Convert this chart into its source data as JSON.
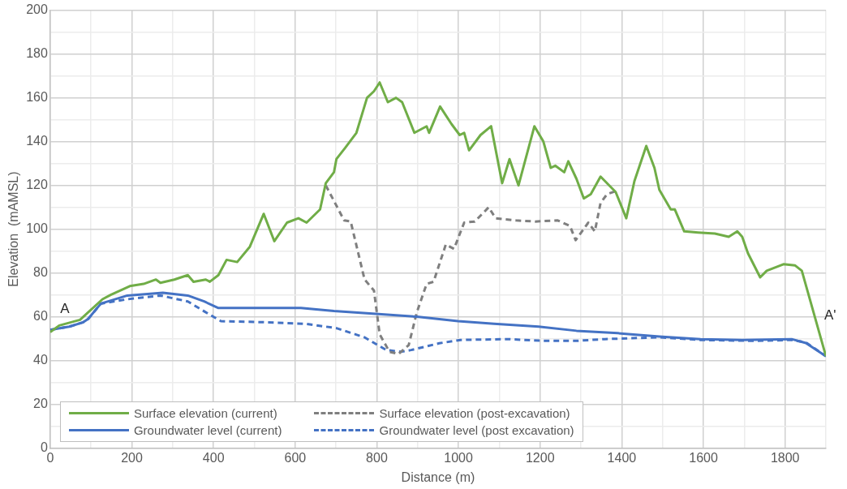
{
  "chart_data": {
    "type": "line",
    "xlabel": "Distance (m)",
    "ylabel": "Elevation  (mAMSL)",
    "xlim": [
      0,
      1900
    ],
    "ylim": [
      0,
      200
    ],
    "xticks": [
      0,
      {
        "value": 100,
        "label": null
      },
      200,
      {
        "value": 300,
        "label": null
      },
      400,
      {
        "value": 500,
        "label": null
      },
      600,
      {
        "value": 700,
        "label": null
      },
      800,
      {
        "value": 900,
        "label": null
      },
      1000,
      {
        "value": 1100,
        "label": null
      },
      1200,
      {
        "value": 1300,
        "label": null
      },
      1400,
      {
        "value": 1500,
        "label": null
      },
      1600,
      {
        "value": 1700,
        "label": null
      },
      1800,
      {
        "value": 1900,
        "label": null
      }
    ],
    "yticks": [
      0,
      {
        "value": 10,
        "label": null
      },
      20,
      {
        "value": 30,
        "label": null
      },
      40,
      {
        "value": 50,
        "label": null
      },
      60,
      {
        "value": 70,
        "label": null
      },
      80,
      {
        "value": 90,
        "label": null
      },
      100,
      {
        "value": 110,
        "label": null
      },
      120,
      {
        "value": 130,
        "label": null
      },
      140,
      {
        "value": 150,
        "label": null
      },
      160,
      {
        "value": 170,
        "label": null
      },
      180,
      {
        "value": 190,
        "label": null
      },
      200
    ],
    "grid": true,
    "legend": "bottom",
    "marker": "none",
    "annotations": [
      "A",
      "A'"
    ],
    "series": [
      {
        "name": "Surface elevation (current)",
        "color": "#70ad47",
        "line_style": "solid",
        "x": [
          0,
          22,
          73,
          93,
          128,
          148,
          195,
          229,
          259,
          270,
          304,
          337,
          351,
          381,
          391,
          412,
          432,
          458,
          489,
          523,
          549,
          580,
          608,
          628,
          661,
          675,
          695,
          701,
          722,
          750,
          776,
          793,
          807,
          827,
          847,
          862,
          892,
          922,
          928,
          955,
          983,
          1003,
          1014,
          1026,
          1054,
          1080,
          1107,
          1125,
          1147,
          1186,
          1208,
          1226,
          1237,
          1259,
          1269,
          1289,
          1307,
          1324,
          1348,
          1385,
          1411,
          1431,
          1460,
          1480,
          1492,
          1520,
          1530,
          1553,
          1587,
          1628,
          1662,
          1683,
          1695,
          1709,
          1739,
          1755,
          1796,
          1824,
          1841,
          1900
        ],
        "values": [
          53,
          56,
          58.6,
          62,
          68,
          70,
          74,
          75,
          77,
          75.5,
          77,
          79,
          76,
          77,
          76,
          79,
          86,
          85,
          92,
          107,
          94.5,
          103,
          105,
          103,
          109,
          121,
          126,
          132,
          137,
          144,
          160,
          163,
          167,
          158,
          160,
          158,
          144,
          147,
          144,
          156,
          148,
          143,
          144,
          136,
          143,
          147,
          121,
          132,
          120,
          147,
          140,
          128,
          129,
          126,
          131,
          123,
          114,
          116,
          124,
          117,
          105,
          122,
          138,
          128,
          118,
          109,
          109,
          99,
          98.5,
          98,
          96.5,
          99,
          96.5,
          89,
          78,
          81,
          84,
          83.5,
          81,
          42
        ]
      },
      {
        "name": "Groundwater level (current)",
        "color": "#4472c4",
        "line_style": "solid",
        "x": [
          0,
          47,
          81,
          93,
          124,
          189,
          276,
          337,
          377,
          412,
          478,
          614,
          695,
          797,
          898,
          999,
          1087,
          1196,
          1289,
          1390,
          1492,
          1593,
          1695,
          1816,
          1851,
          1900
        ],
        "values": [
          54,
          55.5,
          57.5,
          59,
          66,
          69.7,
          71,
          69.7,
          67,
          64,
          64,
          64,
          62.6,
          61.3,
          60,
          58,
          56.8,
          55.5,
          53.6,
          52.5,
          51,
          49.8,
          49.4,
          49.8,
          48,
          42
        ]
      },
      {
        "name": "Surface elevation (post-excavation)",
        "color": "#7f7f7f",
        "line_style": "dashed",
        "x": [
          675,
          720,
          736,
          770,
          793,
          807,
          831,
          853,
          878,
          898,
          922,
          939,
          969,
          989,
          1014,
          1040,
          1074,
          1091,
          1141,
          1188,
          1243,
          1273,
          1287,
          1318,
          1334,
          1348,
          1364,
          1389
        ],
        "values": [
          120,
          104,
          103.5,
          77,
          72,
          52,
          44,
          43,
          47,
          62,
          75,
          76,
          93,
          91,
          103,
          103.5,
          110,
          105,
          104,
          103.5,
          104,
          101.5,
          95,
          103,
          99,
          112,
          116,
          117.6
        ]
      },
      {
        "name": "Groundwater level (post excavation)",
        "color": "#4472c4",
        "line_style": "dashed",
        "x": [
          0,
          47,
          81,
          93,
          124,
          189,
          270,
          337,
          377,
          418,
          527,
          628,
          701,
          770,
          823,
          858,
          884,
          953,
          1005,
          1121,
          1208,
          1289,
          1358,
          1492,
          1593,
          1729,
          1816,
          1851,
          1900
        ],
        "values": [
          54,
          55.5,
          57.5,
          59,
          66,
          68,
          69.7,
          67,
          62.5,
          58,
          57.5,
          56.7,
          54.8,
          50.6,
          44.8,
          44,
          44.8,
          47.9,
          49.4,
          49.8,
          49,
          49,
          49.8,
          50.6,
          49.4,
          49,
          49.4,
          48.3,
          42
        ]
      }
    ]
  }
}
